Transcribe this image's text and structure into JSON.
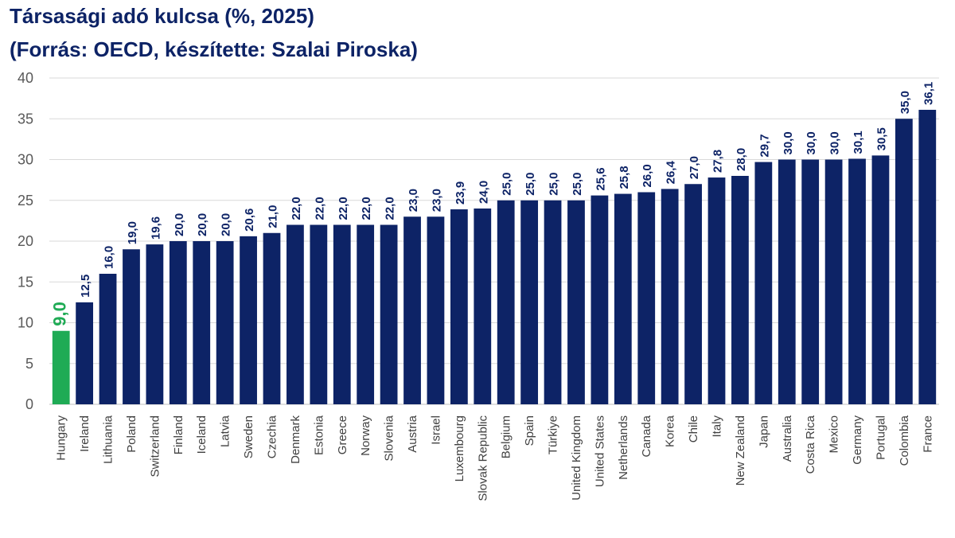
{
  "title_line1": "Társasági adó kulcsa (%, 2025)",
  "title_line2": "(Forrás: OECD, készítette: Szalai Piroska)",
  "colors": {
    "bar": "#0d2366",
    "highlight": "#1fab55",
    "grid": "#d9d9d9"
  },
  "chart_data": {
    "type": "bar",
    "title": "Társasági adó kulcsa (%, 2025)",
    "subtitle": "(Forrás: OECD, készítette: Szalai Piroska)",
    "xlabel": "",
    "ylabel": "",
    "ylim": [
      0,
      40
    ],
    "yticks": [
      0,
      5,
      10,
      15,
      20,
      25,
      30,
      35,
      40
    ],
    "grid": true,
    "highlight_category": "Hungary",
    "categories": [
      "Hungary",
      "Ireland",
      "Lithuania",
      "Poland",
      "Switzerland",
      "Finland",
      "Iceland",
      "Latvia",
      "Sweden",
      "Czechia",
      "Denmark",
      "Estonia",
      "Greece",
      "Norway",
      "Slovenia",
      "Austria",
      "Israel",
      "Luxembourg",
      "Slovak Republic",
      "Belgium",
      "Spain",
      "Türkiye",
      "United Kingdom",
      "United States",
      "Netherlands",
      "Canada",
      "Korea",
      "Chile",
      "Italy",
      "New Zealand",
      "Japan",
      "Australia",
      "Costa Rica",
      "Mexico",
      "Germany",
      "Portugal",
      "Colombia",
      "France"
    ],
    "values": [
      9.0,
      12.5,
      16.0,
      19.0,
      19.6,
      20.0,
      20.0,
      20.0,
      20.6,
      21.0,
      22.0,
      22.0,
      22.0,
      22.0,
      22.0,
      23.0,
      23.0,
      23.9,
      24.0,
      25.0,
      25.0,
      25.0,
      25.0,
      25.6,
      25.8,
      26.0,
      26.4,
      27.0,
      27.8,
      28.0,
      29.7,
      30.0,
      30.0,
      30.0,
      30.1,
      30.5,
      35.0,
      36.1
    ],
    "data_labels": [
      "9,0",
      "12,5",
      "16,0",
      "19,0",
      "19,6",
      "20,0",
      "20,0",
      "20,0",
      "20,6",
      "21,0",
      "22,0",
      "22,0",
      "22,0",
      "22,0",
      "22,0",
      "23,0",
      "23,0",
      "23,9",
      "24,0",
      "25,0",
      "25,0",
      "25,0",
      "25,0",
      "25,6",
      "25,8",
      "26,0",
      "26,4",
      "27,0",
      "27,8",
      "28,0",
      "29,7",
      "30,0",
      "30,0",
      "30,0",
      "30,1",
      "30,5",
      "35,0",
      "36,1"
    ]
  }
}
